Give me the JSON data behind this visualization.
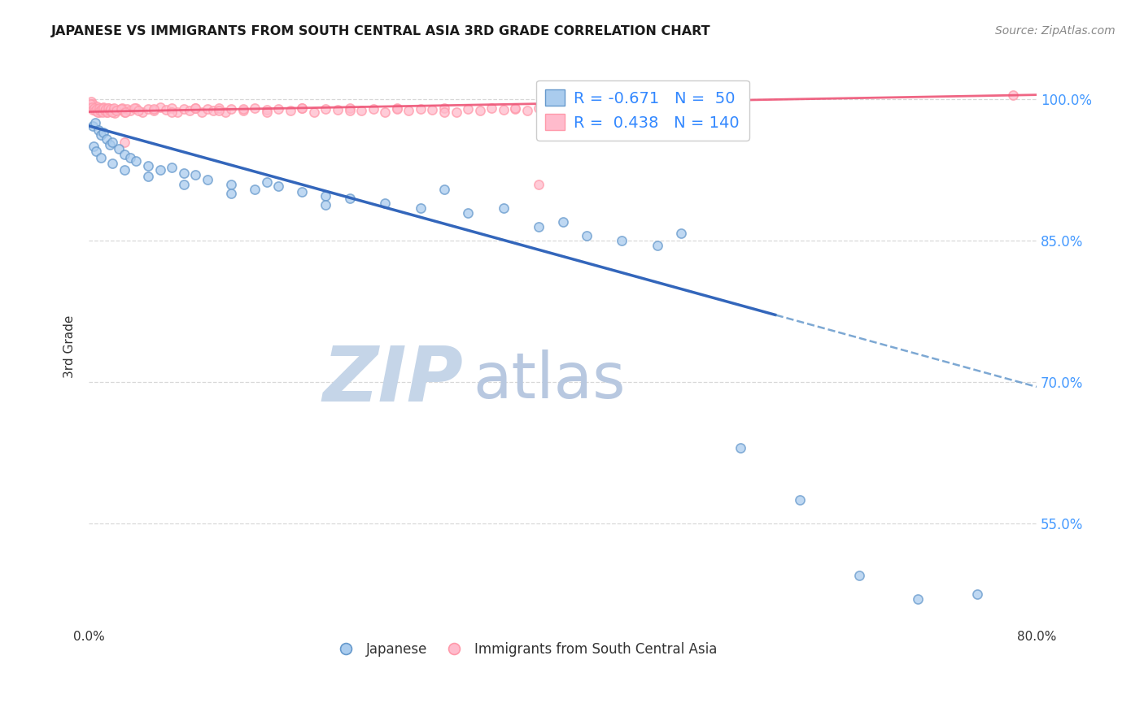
{
  "title": "JAPANESE VS IMMIGRANTS FROM SOUTH CENTRAL ASIA 3RD GRADE CORRELATION CHART",
  "source_text": "Source: ZipAtlas.com",
  "ylabel": "3rd Grade",
  "xlim": [
    0.0,
    80.0
  ],
  "ylim": [
    44.0,
    103.5
  ],
  "yticks_right": [
    55.0,
    70.0,
    85.0,
    100.0
  ],
  "xtick_positions": [
    0,
    10,
    20,
    30,
    40,
    50,
    60,
    70,
    80
  ],
  "xticklabels": [
    "0.0%",
    "",
    "",
    "",
    "",
    "",
    "",
    "",
    "80.0%"
  ],
  "background_color": "#ffffff",
  "grid_color": "#d8d8d8",
  "grid_style": "--",
  "blue_fill": "#aaccee",
  "blue_edge": "#6699cc",
  "pink_fill": "#ffbbcc",
  "pink_edge": "#ff99aa",
  "blue_line_color": "#3366bb",
  "pink_line_color": "#ee5577",
  "title_color": "#1a1a1a",
  "right_tick_color": "#4499ff",
  "legend_text_color": "#3388ff",
  "watermark_zip_color": "#c5d5e8",
  "watermark_atlas_color": "#b8c8e0",
  "japanese_points": [
    [
      0.3,
      97.2
    ],
    [
      0.5,
      97.5
    ],
    [
      0.8,
      96.8
    ],
    [
      1.0,
      96.2
    ],
    [
      1.2,
      96.5
    ],
    [
      1.5,
      95.8
    ],
    [
      1.8,
      95.2
    ],
    [
      2.0,
      95.5
    ],
    [
      2.5,
      94.8
    ],
    [
      3.0,
      94.2
    ],
    [
      3.5,
      93.8
    ],
    [
      4.0,
      93.5
    ],
    [
      5.0,
      93.0
    ],
    [
      6.0,
      92.5
    ],
    [
      7.0,
      92.8
    ],
    [
      8.0,
      92.2
    ],
    [
      9.0,
      92.0
    ],
    [
      10.0,
      91.5
    ],
    [
      12.0,
      91.0
    ],
    [
      14.0,
      90.5
    ],
    [
      15.0,
      91.2
    ],
    [
      16.0,
      90.8
    ],
    [
      18.0,
      90.2
    ],
    [
      20.0,
      89.8
    ],
    [
      22.0,
      89.5
    ],
    [
      25.0,
      89.0
    ],
    [
      28.0,
      88.5
    ],
    [
      30.0,
      90.5
    ],
    [
      32.0,
      88.0
    ],
    [
      35.0,
      88.5
    ],
    [
      38.0,
      86.5
    ],
    [
      40.0,
      87.0
    ],
    [
      42.0,
      85.5
    ],
    [
      45.0,
      85.0
    ],
    [
      48.0,
      84.5
    ],
    [
      50.0,
      85.8
    ],
    [
      55.0,
      63.0
    ],
    [
      60.0,
      57.5
    ],
    [
      65.0,
      49.5
    ],
    [
      70.0,
      47.0
    ],
    [
      75.0,
      47.5
    ],
    [
      0.4,
      95.0
    ],
    [
      0.6,
      94.5
    ],
    [
      1.0,
      93.8
    ],
    [
      2.0,
      93.2
    ],
    [
      3.0,
      92.5
    ],
    [
      5.0,
      91.8
    ],
    [
      8.0,
      91.0
    ],
    [
      12.0,
      90.0
    ],
    [
      20.0,
      88.8
    ]
  ],
  "pink_points": [
    [
      0.2,
      99.8
    ],
    [
      0.3,
      99.5
    ],
    [
      0.4,
      99.2
    ],
    [
      0.5,
      99.0
    ],
    [
      0.6,
      98.8
    ],
    [
      0.7,
      99.3
    ],
    [
      0.8,
      99.0
    ],
    [
      0.9,
      98.7
    ],
    [
      1.0,
      99.1
    ],
    [
      1.1,
      98.9
    ],
    [
      1.2,
      99.2
    ],
    [
      1.3,
      98.8
    ],
    [
      1.4,
      99.0
    ],
    [
      1.5,
      98.7
    ],
    [
      1.6,
      99.1
    ],
    [
      1.8,
      98.8
    ],
    [
      2.0,
      99.0
    ],
    [
      2.2,
      98.6
    ],
    [
      2.5,
      98.9
    ],
    [
      2.8,
      99.1
    ],
    [
      3.0,
      98.7
    ],
    [
      3.2,
      99.0
    ],
    [
      3.5,
      98.8
    ],
    [
      4.0,
      99.1
    ],
    [
      4.5,
      98.7
    ],
    [
      5.0,
      99.0
    ],
    [
      5.5,
      98.8
    ],
    [
      6.0,
      99.2
    ],
    [
      6.5,
      98.9
    ],
    [
      7.0,
      99.1
    ],
    [
      7.5,
      98.7
    ],
    [
      8.0,
      99.0
    ],
    [
      8.5,
      98.8
    ],
    [
      9.0,
      99.1
    ],
    [
      9.5,
      98.7
    ],
    [
      10.0,
      99.0
    ],
    [
      10.5,
      98.8
    ],
    [
      11.0,
      99.1
    ],
    [
      11.5,
      98.7
    ],
    [
      12.0,
      99.0
    ],
    [
      13.0,
      98.8
    ],
    [
      14.0,
      99.1
    ],
    [
      15.0,
      98.9
    ],
    [
      16.0,
      99.0
    ],
    [
      17.0,
      98.8
    ],
    [
      18.0,
      99.1
    ],
    [
      19.0,
      98.7
    ],
    [
      20.0,
      99.0
    ],
    [
      21.0,
      98.9
    ],
    [
      22.0,
      99.1
    ],
    [
      23.0,
      98.8
    ],
    [
      24.0,
      99.0
    ],
    [
      25.0,
      98.7
    ],
    [
      26.0,
      99.1
    ],
    [
      27.0,
      98.8
    ],
    [
      28.0,
      99.0
    ],
    [
      29.0,
      98.9
    ],
    [
      30.0,
      99.1
    ],
    [
      31.0,
      98.7
    ],
    [
      32.0,
      99.0
    ],
    [
      33.0,
      98.8
    ],
    [
      34.0,
      99.1
    ],
    [
      35.0,
      98.9
    ],
    [
      36.0,
      99.0
    ],
    [
      37.0,
      98.8
    ],
    [
      38.0,
      99.1
    ],
    [
      39.0,
      98.7
    ],
    [
      40.0,
      99.0
    ],
    [
      41.0,
      98.9
    ],
    [
      42.0,
      99.1
    ],
    [
      43.0,
      98.8
    ],
    [
      44.0,
      99.0
    ],
    [
      45.0,
      98.7
    ],
    [
      46.0,
      99.1
    ],
    [
      47.0,
      98.8
    ],
    [
      48.0,
      99.0
    ],
    [
      49.0,
      98.9
    ],
    [
      50.0,
      99.1
    ],
    [
      0.15,
      99.5
    ],
    [
      0.25,
      99.2
    ],
    [
      0.35,
      98.9
    ],
    [
      0.45,
      99.1
    ],
    [
      0.55,
      98.8
    ],
    [
      0.65,
      99.0
    ],
    [
      0.75,
      98.7
    ],
    [
      0.85,
      99.1
    ],
    [
      0.95,
      98.8
    ],
    [
      1.05,
      99.0
    ],
    [
      1.15,
      98.7
    ],
    [
      1.25,
      99.1
    ],
    [
      1.35,
      98.8
    ],
    [
      1.45,
      99.0
    ],
    [
      1.55,
      98.7
    ],
    [
      1.65,
      99.1
    ],
    [
      1.75,
      98.8
    ],
    [
      1.85,
      99.0
    ],
    [
      1.95,
      98.7
    ],
    [
      2.1,
      99.1
    ],
    [
      2.3,
      98.8
    ],
    [
      2.7,
      99.0
    ],
    [
      3.1,
      98.7
    ],
    [
      3.8,
      99.1
    ],
    [
      4.2,
      98.8
    ],
    [
      5.5,
      99.0
    ],
    [
      7.0,
      98.7
    ],
    [
      9.0,
      99.1
    ],
    [
      11.0,
      98.8
    ],
    [
      13.0,
      99.0
    ],
    [
      15.0,
      98.7
    ],
    [
      18.0,
      99.1
    ],
    [
      22.0,
      98.8
    ],
    [
      26.0,
      99.0
    ],
    [
      30.0,
      98.7
    ],
    [
      36.0,
      99.1
    ],
    [
      42.0,
      98.8
    ],
    [
      3.0,
      95.5
    ],
    [
      38.0,
      91.0
    ],
    [
      78.0,
      100.5
    ]
  ],
  "blue_trend_x0": 0.0,
  "blue_trend_y0": 97.2,
  "blue_trend_x1": 80.0,
  "blue_trend_y1": 69.5,
  "blue_solid_end_x": 58.0,
  "pink_trend_x0": 0.0,
  "pink_trend_y0": 98.7,
  "pink_trend_x1": 80.0,
  "pink_trend_y1": 100.5,
  "marker_size": 65,
  "marker_lw": 1.2,
  "figsize": [
    14.06,
    8.92
  ],
  "dpi": 100
}
